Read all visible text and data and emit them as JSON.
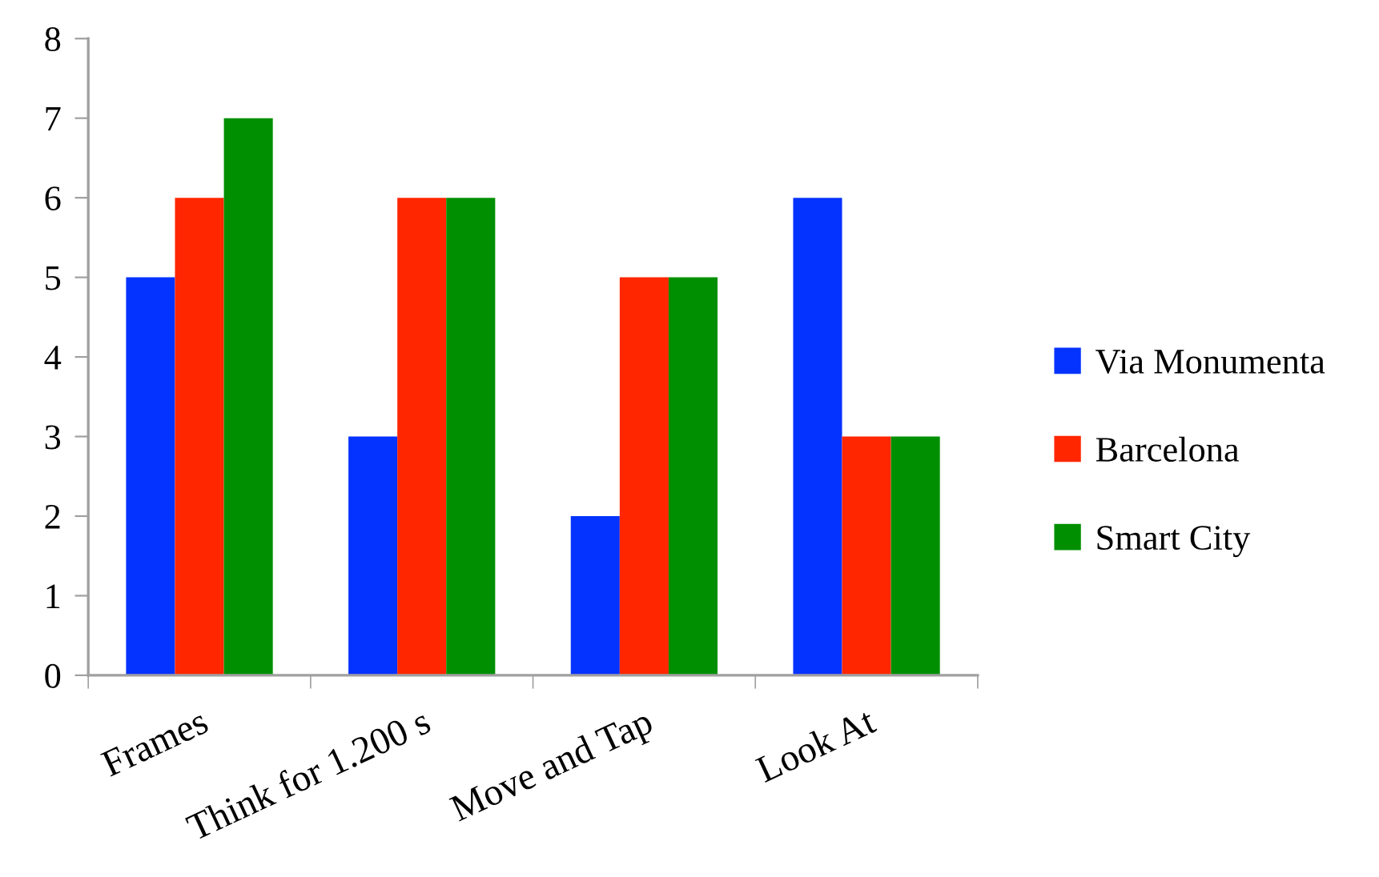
{
  "chart_data": {
    "type": "bar",
    "categories": [
      "Frames",
      "Think for 1.200 s",
      "Move and Tap",
      "Look At"
    ],
    "series": [
      {
        "name": "Via Monumenta",
        "color": "#0433ff",
        "values": [
          5,
          3,
          2,
          6
        ]
      },
      {
        "name": "Barcelona",
        "color": "#ff2600",
        "values": [
          6,
          6,
          5,
          3
        ]
      },
      {
        "name": "Smart City",
        "color": "#008f00",
        "values": [
          7,
          6,
          5,
          3
        ]
      }
    ],
    "ylim": [
      0,
      8
    ],
    "yticks": [
      0,
      1,
      2,
      3,
      4,
      5,
      6,
      7,
      8
    ],
    "grid": false,
    "legend": "right"
  }
}
